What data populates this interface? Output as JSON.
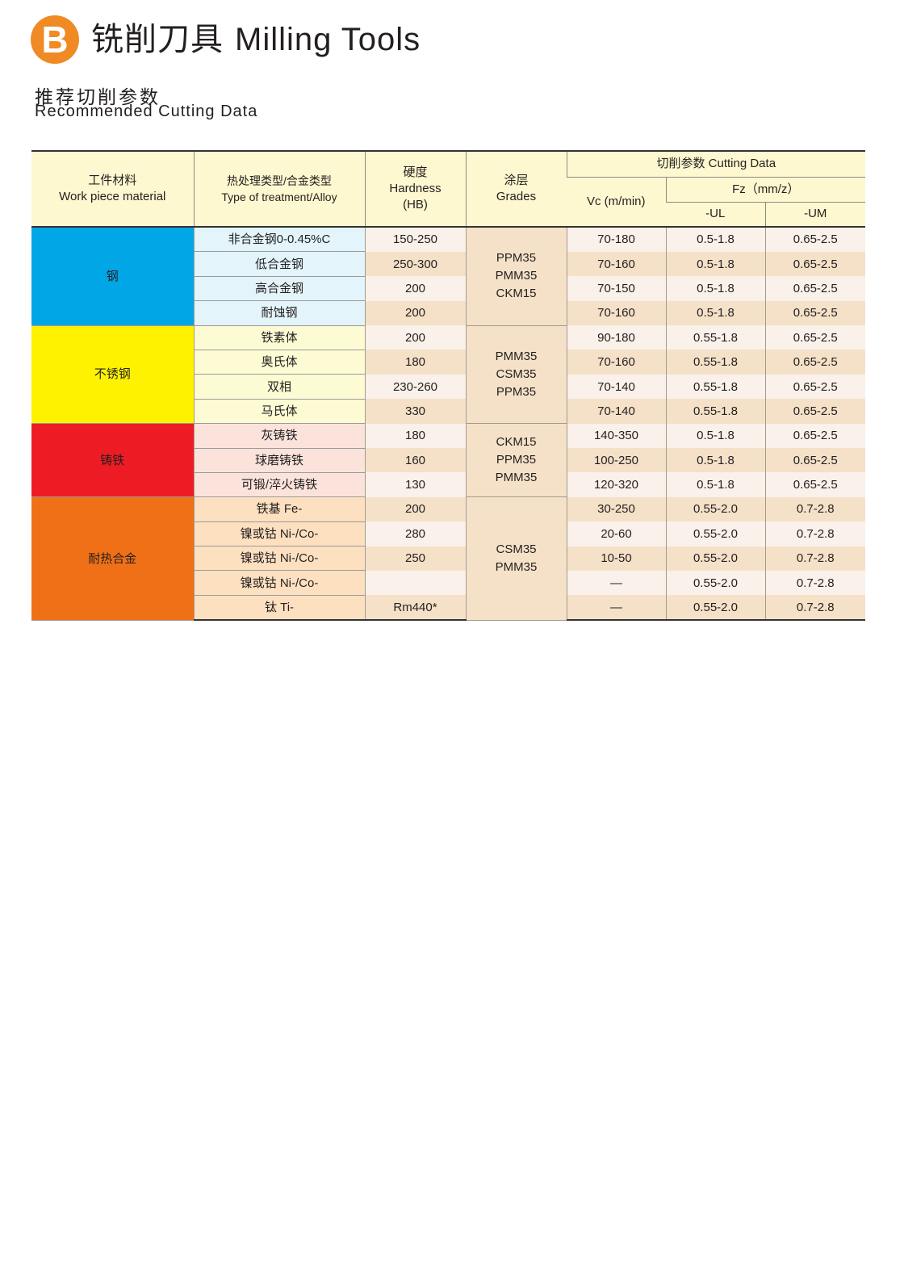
{
  "header": {
    "logo_letter": "B",
    "title_cn": "铣削刀具",
    "title_en": "Milling Tools",
    "subtitle_cn": "推荐切削参数",
    "subtitle_en": "Recommended Cutting Data"
  },
  "colors": {
    "logo": "#f08a24",
    "steel": "#00a6e6",
    "stainless": "#fff200",
    "cast_iron": "#ed1c24",
    "heat_resistant": "#f07017"
  },
  "table": {
    "headers": {
      "material_cn": "工件材料",
      "material_en": "Work piece material",
      "type_cn": "热处理类型/合金类型",
      "type_en": "Type of treatment/Alloy",
      "hardness_cn": "硬度",
      "hardness_en": "Hardness",
      "hardness_unit": "(HB)",
      "grades_cn": "涂层",
      "grades_en": "Grades",
      "cutting": "切削参数 Cutting Data",
      "vc": "Vc (m/min)",
      "fz": "Fz（mm/z）",
      "ul": "-UL",
      "um": "-UM"
    },
    "groups": [
      {
        "material": "钢",
        "color": "#00a6e6",
        "type_bg": "#e3f4fb",
        "grades": [
          "PPM35",
          "PMM35",
          "CKM15"
        ],
        "rows": [
          {
            "type": "非合金钢0-0.45%C",
            "hardness": "150-250",
            "vc": "70-180",
            "ul": "0.5-1.8",
            "um": "0.65-2.5"
          },
          {
            "type": "低合金钢",
            "hardness": "250-300",
            "vc": "70-160",
            "ul": "0.5-1.8",
            "um": "0.65-2.5"
          },
          {
            "type": "高合金钢",
            "hardness": "200",
            "vc": "70-150",
            "ul": "0.5-1.8",
            "um": "0.65-2.5"
          },
          {
            "type": "耐蚀钢",
            "hardness": "200",
            "vc": "70-160",
            "ul": "0.5-1.8",
            "um": "0.65-2.5"
          }
        ]
      },
      {
        "material": "不锈钢",
        "color": "#fff200",
        "type_bg": "#fdfbd3",
        "grades": [
          "PMM35",
          "CSM35",
          "PPM35"
        ],
        "rows": [
          {
            "type": "铁素体",
            "hardness": "200",
            "vc": "90-180",
            "ul": "0.55-1.8",
            "um": "0.65-2.5"
          },
          {
            "type": "奥氏体",
            "hardness": "180",
            "vc": "70-160",
            "ul": "0.55-1.8",
            "um": "0.65-2.5"
          },
          {
            "type": "双相",
            "hardness": "230-260",
            "vc": "70-140",
            "ul": "0.55-1.8",
            "um": "0.65-2.5"
          },
          {
            "type": "马氏体",
            "hardness": "330",
            "vc": "70-140",
            "ul": "0.55-1.8",
            "um": "0.65-2.5"
          }
        ]
      },
      {
        "material": "铸铁",
        "color": "#ed1c24",
        "type_bg": "#fbe3dc",
        "grades": [
          "CKM15",
          "PPM35",
          "PMM35"
        ],
        "rows": [
          {
            "type": "灰铸铁",
            "hardness": "180",
            "vc": "140-350",
            "ul": "0.5-1.8",
            "um": "0.65-2.5"
          },
          {
            "type": "球磨铸铁",
            "hardness": "160",
            "vc": "100-250",
            "ul": "0.5-1.8",
            "um": "0.65-2.5"
          },
          {
            "type": "可锻/淬火铸铁",
            "hardness": "130",
            "vc": "120-320",
            "ul": "0.5-1.8",
            "um": "0.65-2.5"
          }
        ]
      },
      {
        "material": "耐热合金",
        "color": "#f07017",
        "type_bg": "#fde0c0",
        "grades": [
          "CSM35",
          "PMM35"
        ],
        "rows": [
          {
            "type": "铁基 Fe-",
            "hardness": "200",
            "vc": "30-250",
            "ul": "0.55-2.0",
            "um": "0.7-2.8"
          },
          {
            "type": "镍或钴 Ni-/Co-",
            "hardness": "280",
            "vc": "20-60",
            "ul": "0.55-2.0",
            "um": "0.7-2.8"
          },
          {
            "type": "镍或钴 Ni-/Co-",
            "hardness": "250",
            "vc": "10-50",
            "ul": "0.55-2.0",
            "um": "0.7-2.8"
          },
          {
            "type": "镍或钴 Ni-/Co-",
            "hardness": "",
            "vc": "—",
            "ul": "0.55-2.0",
            "um": "0.7-2.8"
          },
          {
            "type": "钛 Ti-",
            "hardness": "Rm440*",
            "vc": "—",
            "ul": "0.55-2.0",
            "um": "0.7-2.8"
          }
        ]
      }
    ]
  }
}
